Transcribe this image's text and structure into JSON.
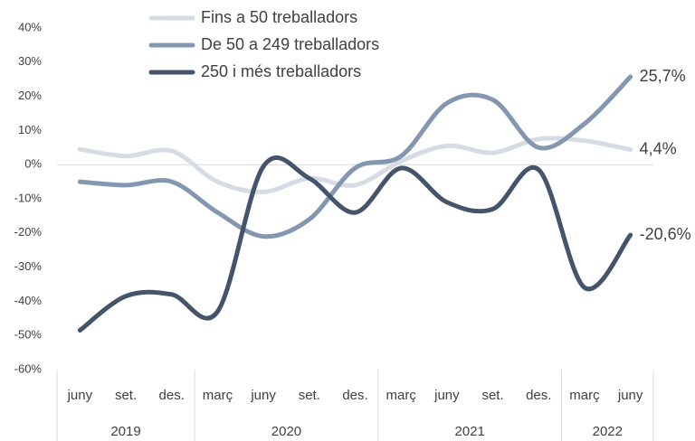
{
  "chart_data": {
    "type": "line",
    "categories": [
      "juny",
      "set.",
      "des.",
      "març",
      "juny",
      "set.",
      "des.",
      "març",
      "juny",
      "set.",
      "des.",
      "març",
      "juny"
    ],
    "year_groups": [
      {
        "label": "2019",
        "size": 3
      },
      {
        "label": "2020",
        "size": 4
      },
      {
        "label": "2021",
        "size": 4
      },
      {
        "label": "2022",
        "size": 2
      }
    ],
    "series": [
      {
        "name": "Fins a 50 treballadors",
        "color": "#d6dce4",
        "values": [
          4.5,
          2.5,
          4,
          -5,
          -8,
          -4,
          -6,
          1,
          5.5,
          3.5,
          7.5,
          7,
          4.4
        ],
        "value_labels": [
          null,
          null,
          null,
          null,
          null,
          null,
          null,
          null,
          null,
          null,
          null,
          null,
          "4,4%"
        ]
      },
      {
        "name": "De 50 a 249 treballadors",
        "color": "#8497b0",
        "values": [
          -5,
          -6,
          -5,
          -14,
          -21,
          -16,
          -1,
          2.5,
          18,
          19,
          5,
          12,
          25.7
        ],
        "value_labels": [
          null,
          null,
          null,
          null,
          null,
          null,
          null,
          null,
          null,
          null,
          null,
          null,
          "25,7%"
        ]
      },
      {
        "name": "250 i més treballadors",
        "color": "#44546a",
        "values": [
          -48.5,
          -38.5,
          -38,
          -43,
          -0.5,
          -4,
          -14,
          -1,
          -11,
          -13,
          -1.5,
          -36,
          -20.6
        ],
        "value_labels": [
          null,
          null,
          null,
          null,
          null,
          null,
          null,
          null,
          null,
          null,
          null,
          null,
          "-20,6%"
        ]
      }
    ],
    "ylim": [
      -60,
      40
    ],
    "yticks": [
      {
        "value": -60,
        "label": "-60%"
      },
      {
        "value": -50,
        "label": "-50%"
      },
      {
        "value": -40,
        "label": "-40%"
      },
      {
        "value": -30,
        "label": "-30%"
      },
      {
        "value": -20,
        "label": "-20%"
      },
      {
        "value": -10,
        "label": "-10%"
      },
      {
        "value": 0,
        "label": "0%"
      },
      {
        "value": 10,
        "label": "10%"
      },
      {
        "value": 20,
        "label": "20%"
      },
      {
        "value": 30,
        "label": "30%"
      },
      {
        "value": 40,
        "label": "40%"
      }
    ],
    "grid": false
  }
}
